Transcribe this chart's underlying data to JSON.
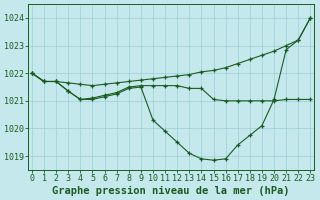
{
  "title": "Graphe pression niveau de la mer (hPa)",
  "hours": [
    0,
    1,
    2,
    3,
    4,
    5,
    6,
    7,
    8,
    9,
    10,
    11,
    12,
    13,
    14,
    15,
    16,
    17,
    18,
    19,
    20,
    21,
    22,
    23
  ],
  "ylim": [
    1018.5,
    1024.5
  ],
  "xlim": [
    -0.3,
    23.3
  ],
  "yticks": [
    1019,
    1020,
    1021,
    1022,
    1023,
    1024
  ],
  "xticks": [
    0,
    1,
    2,
    3,
    4,
    5,
    6,
    7,
    8,
    9,
    10,
    11,
    12,
    13,
    14,
    15,
    16,
    17,
    18,
    19,
    20,
    21,
    22,
    23
  ],
  "bg_color": "#c5e8ed",
  "grid_color": "#9ecdd5",
  "line_color": "#1a5c20",
  "line1_y": [
    1022.0,
    1021.7,
    1021.7,
    1021.65,
    1021.6,
    1021.55,
    1021.6,
    1021.65,
    1021.7,
    1021.75,
    1021.8,
    1021.85,
    1021.9,
    1021.95,
    1022.05,
    1022.1,
    1022.2,
    1022.35,
    1022.5,
    1022.65,
    1022.8,
    1023.0,
    1023.2,
    1024.0
  ],
  "line2_y": [
    1022.0,
    1021.7,
    1021.7,
    1021.35,
    1021.05,
    1021.1,
    1021.2,
    1021.3,
    1021.5,
    1021.55,
    1021.55,
    1021.55,
    1021.55,
    1021.45,
    1021.45,
    1021.05,
    1021.0,
    1021.0,
    1021.0,
    1021.0,
    1021.0,
    1021.05,
    1021.05,
    1021.05
  ],
  "line3_y": [
    1022.0,
    1021.7,
    1021.7,
    1021.35,
    1021.05,
    1021.05,
    1021.15,
    1021.25,
    1021.45,
    1021.5,
    1020.3,
    1019.9,
    1019.5,
    1019.1,
    1018.9,
    1018.85,
    1018.9,
    1019.4,
    1019.75,
    1020.1,
    1021.05,
    1022.85,
    1023.2,
    1024.0
  ],
  "title_fontsize": 7.5,
  "tick_fontsize": 6,
  "figsize": [
    3.2,
    2.0
  ],
  "dpi": 100
}
